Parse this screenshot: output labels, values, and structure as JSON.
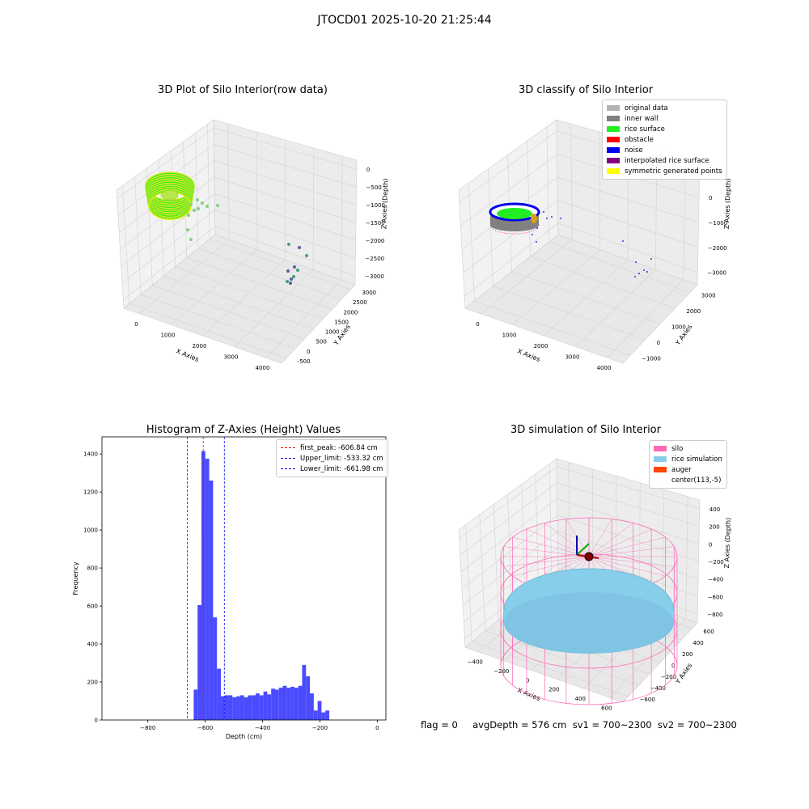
{
  "suptitle": "JTOCD01 2025-10-20 21:25:44",
  "footer": "flag = 0     avgDepth = 576 cm  sv1 = 700~2300  sv2 = 700~2300",
  "colors": {
    "rice_green": "#22ee22",
    "rice_yellow": "#eeee11",
    "noise_blue": "#0000ee",
    "hist_blue": "#4a4aff",
    "silo_pink": "#ff69b4",
    "rice_sim": "#87ceeb",
    "auger": "#ff4500",
    "inner_wall": "#808080",
    "original": "#b3b3b3",
    "obstacle": "#ff0000",
    "interp": "#800080"
  },
  "panels": {
    "p1": {
      "title": "3D Plot of Silo Interior(row data)",
      "xlabel": "X Axies",
      "ylabel": "Y Axies",
      "zlabel": "Z Axies (Depth)",
      "xticks": [
        "0",
        "1000",
        "2000",
        "3000",
        "4000"
      ],
      "yticks": [
        "-500",
        "0",
        "500",
        "1000",
        "1500",
        "2000",
        "2500",
        "3000"
      ],
      "zticks": [
        "0",
        "−500",
        "−1000",
        "−1500",
        "−2000",
        "−2500",
        "−3000"
      ]
    },
    "p2": {
      "title": "3D classify of Silo Interior",
      "xlabel": "X Axies",
      "ylabel": "Y Axies",
      "zlabel": "Z Axies (Depth)",
      "xticks": [
        "0",
        "1000",
        "2000",
        "3000",
        "4000"
      ],
      "yticks": [
        "−1000",
        "0",
        "1000",
        "2000",
        "3000"
      ],
      "zticks": [
        "1000",
        "0",
        "−1000",
        "−2000",
        "−3000"
      ],
      "legend": [
        {
          "label": "original data",
          "color": "#b3b3b3"
        },
        {
          "label": "inner wall",
          "color": "#808080"
        },
        {
          "label": "rice surface",
          "color": "#22ee22"
        },
        {
          "label": "obstacle",
          "color": "#ff0000"
        },
        {
          "label": "noise",
          "color": "#0000ee"
        },
        {
          "label": "interpolated rice surface",
          "color": "#800080"
        },
        {
          "label": "symmetric generated points",
          "color": "#ffff00"
        }
      ]
    },
    "p4": {
      "title": "3D simulation of Silo Interior",
      "xlabel": "X Axies",
      "ylabel": "Y Axies",
      "zlabel": "Z Axies (Depth)",
      "xticks": [
        "−400",
        "−200",
        "0",
        "200",
        "400",
        "600"
      ],
      "yticks": [
        "−600",
        "−400",
        "−200",
        "0",
        "200",
        "400",
        "600"
      ],
      "zticks": [
        "400",
        "200",
        "0",
        "−200",
        "−400",
        "−600",
        "−800"
      ],
      "legend": [
        {
          "label": "silo",
          "color": "#ff69b4"
        },
        {
          "label": "rice simulation",
          "color": "#87ceeb"
        },
        {
          "label": "auger",
          "color": "#ff4500"
        },
        {
          "label": "center(113,-5)",
          "color": ""
        }
      ]
    }
  },
  "chart_data": [
    {
      "type": "histogram",
      "title": "Histogram of Z-Axies (Height) Values",
      "xlabel": "Depth (cm)",
      "ylabel": "Frequency",
      "xlim": [
        -960,
        30
      ],
      "ylim": [
        0,
        1490
      ],
      "xticks": [
        -800,
        -600,
        -400,
        -200,
        0
      ],
      "xtick_labels": [
        "−800",
        "−600",
        "−400",
        "−200",
        "0"
      ],
      "yticks": [
        0,
        200,
        400,
        600,
        800,
        1000,
        1200,
        1400
      ],
      "bin_width": 13.5,
      "bin_start": -640,
      "counts": [
        160,
        605,
        1415,
        1375,
        1260,
        540,
        270,
        125,
        130,
        130,
        120,
        125,
        130,
        120,
        130,
        130,
        140,
        130,
        150,
        135,
        165,
        160,
        170,
        180,
        170,
        175,
        170,
        180,
        290,
        230,
        140,
        50,
        100,
        40,
        50
      ],
      "vlines": [
        {
          "label": "first_peak: -606.84 cm",
          "value": -606.84,
          "color": "#ff0000"
        },
        {
          "label": "Upper_limit: -533.32 cm",
          "value": -533.32,
          "color": "#0000ff"
        },
        {
          "label": "Lower_limit: -661.98 cm",
          "value": -661.98,
          "color": "#0000ff"
        }
      ]
    }
  ]
}
